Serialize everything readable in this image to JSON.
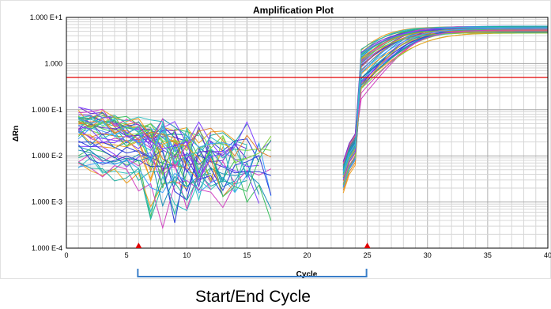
{
  "chart_data": {
    "type": "line",
    "title": "Amplification Plot",
    "xlabel": "Cycle",
    "ylabel": "ΔRn",
    "xlim": [
      0,
      40
    ],
    "ylim": [
      0.0001,
      10
    ],
    "y_scale": "log",
    "x_ticks": [
      "0",
      "5",
      "10",
      "15",
      "20",
      "25",
      "30",
      "35",
      "40"
    ],
    "y_ticks": [
      "1.000 E+1",
      "1.000",
      "1.000 E-1",
      "1.000 E-2",
      "1.000 E-3",
      "1.000 E-4"
    ],
    "grid": true,
    "threshold": 0.5,
    "threshold_color": "#e00000",
    "baseline_start_cycle": 6,
    "baseline_end_cycle": 25,
    "marker_color": "#e00000",
    "series_colors": [
      "#2a3bd8",
      "#6a2bd0",
      "#1a8fb8",
      "#20b0a0",
      "#3cc060",
      "#7fd040",
      "#f0a020",
      "#e08030",
      "#d040c0",
      "#8040ff",
      "#40a0ff",
      "#30c0c0"
    ],
    "series_count": 48,
    "early_baseline": {
      "cycles": [
        1,
        12
      ],
      "level_range": [
        0.005,
        0.12
      ]
    },
    "amplification": {
      "start_cycle": 23,
      "plateau": [
        4.5,
        6.5
      ],
      "midpoint_range": [
        25.5,
        29
      ]
    }
  },
  "annotation": {
    "label": "Start/End Cycle",
    "bracket_color": "#3a7ec8"
  }
}
